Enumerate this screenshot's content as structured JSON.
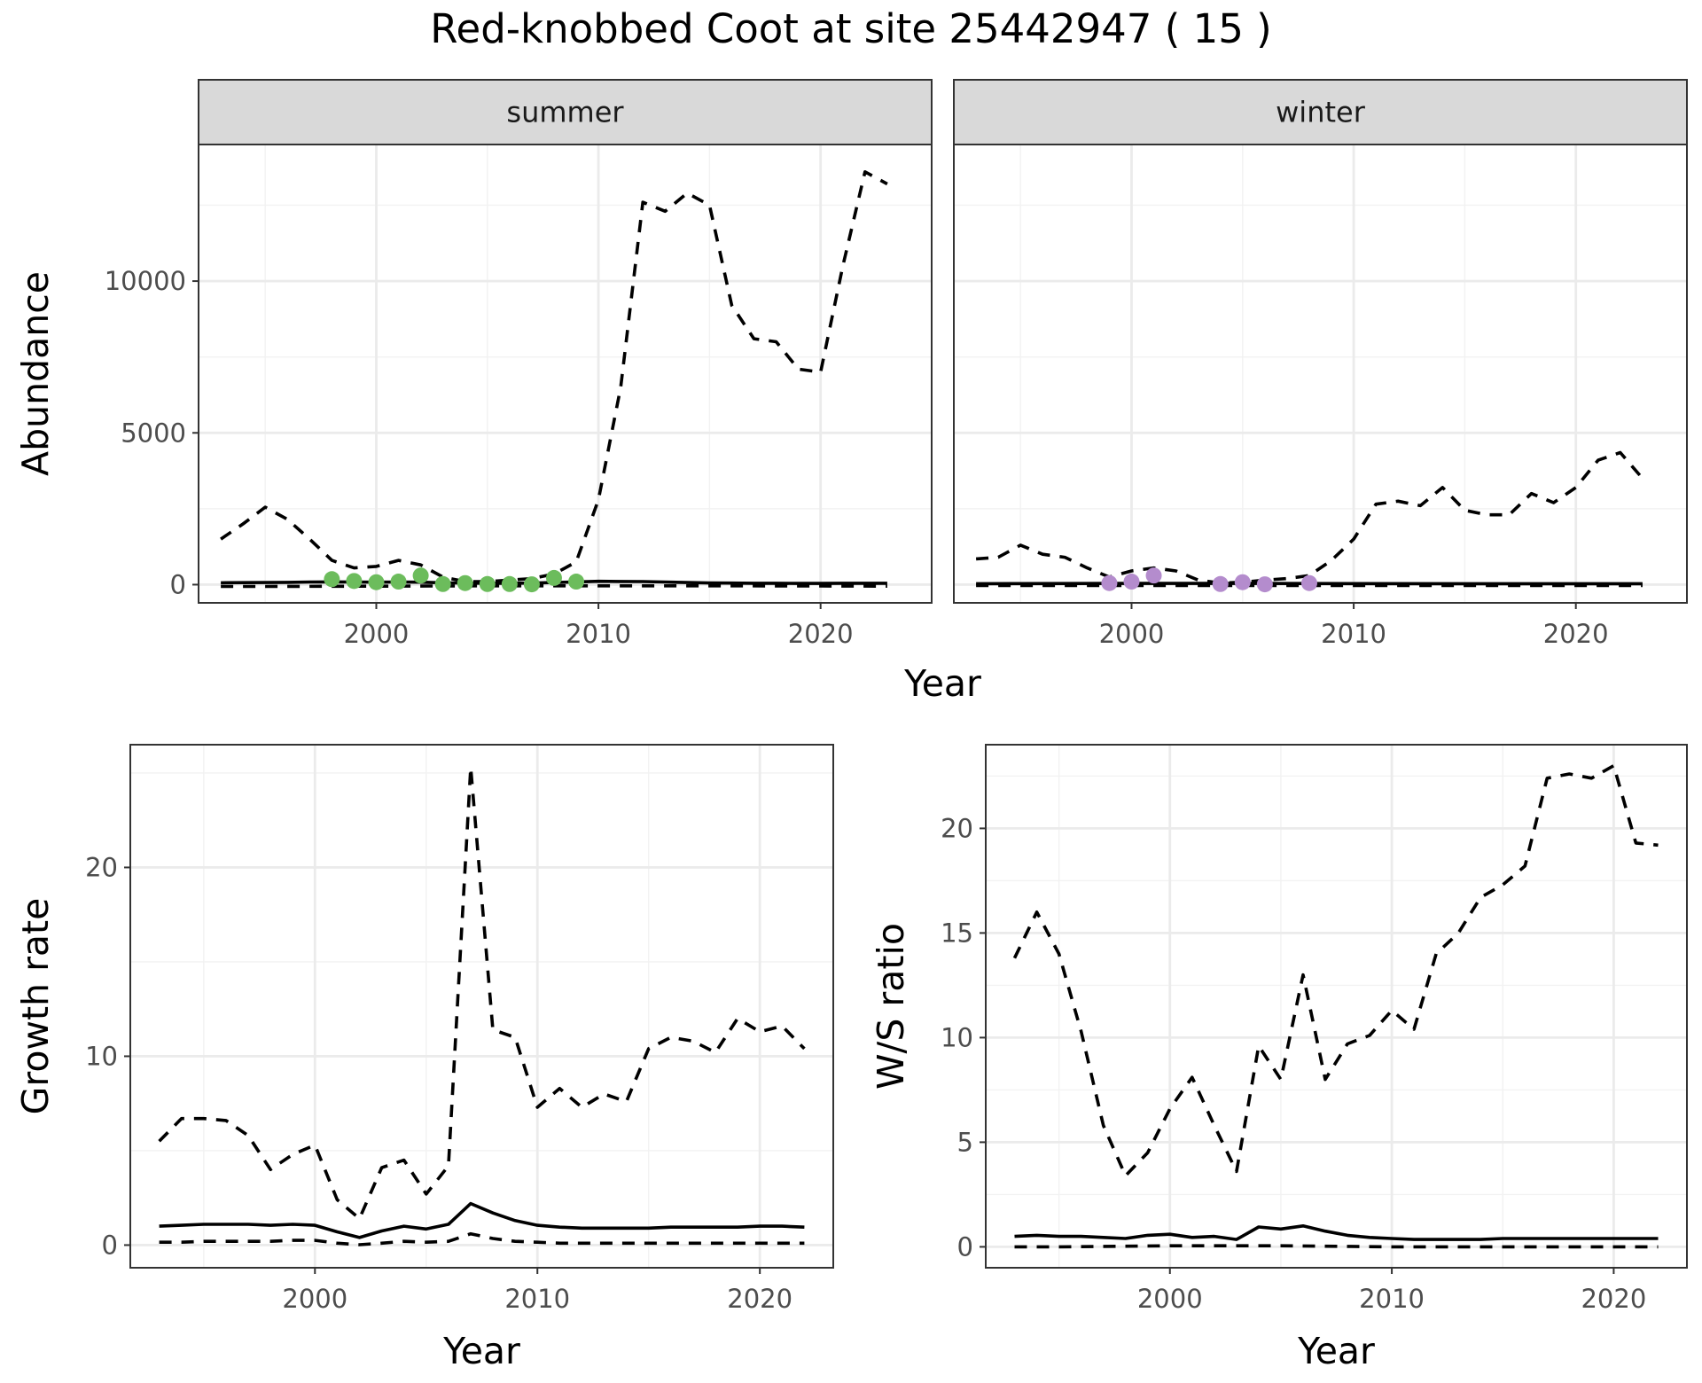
{
  "title": "Red-knobbed Coot at site 25442947 ( 15 )",
  "colors": {
    "summer_points": "#6cbc5c",
    "winter_points": "#b48ccd"
  },
  "chart_data": [
    {
      "type": "line",
      "facet": "summer",
      "xlabel": "Year",
      "ylabel": "Abundance",
      "xlim": [
        1992,
        2025
      ],
      "ylim": [
        -600,
        14500
      ],
      "xticks": [
        2000,
        2010,
        2020
      ],
      "yticks": [
        0,
        5000,
        10000
      ],
      "series": [
        {
          "style": "solid",
          "x": [
            1993,
            1994,
            1995,
            1996,
            1997,
            1998,
            1999,
            2000,
            2001,
            2002,
            2003,
            2004,
            2005,
            2006,
            2007,
            2008,
            2009,
            2010,
            2011,
            2012,
            2013,
            2014,
            2015,
            2016,
            2017,
            2018,
            2019,
            2020,
            2021,
            2022,
            2023
          ],
          "y": [
            60,
            65,
            70,
            75,
            85,
            90,
            85,
            80,
            85,
            80,
            60,
            50,
            45,
            45,
            50,
            70,
            90,
            110,
            105,
            100,
            85,
            70,
            55,
            50,
            45,
            45,
            40,
            40,
            45,
            45,
            45
          ]
        },
        {
          "style": "dashed",
          "x": [
            1993,
            1994,
            1995,
            1996,
            1997,
            1998,
            1999,
            2000,
            2001,
            2002,
            2003,
            2004,
            2005,
            2006,
            2007,
            2008,
            2009,
            2010,
            2011,
            2012,
            2013,
            2014,
            2015,
            2016,
            2017,
            2018,
            2019,
            2020,
            2021,
            2022,
            2023
          ],
          "y": [
            1500,
            2000,
            2550,
            2150,
            1500,
            800,
            550,
            600,
            800,
            650,
            250,
            100,
            100,
            150,
            200,
            350,
            750,
            2800,
            6500,
            12600,
            12300,
            12900,
            12500,
            9200,
            8100,
            8000,
            7100,
            7000,
            10500,
            13600,
            13200
          ]
        },
        {
          "style": "dashed",
          "x": [
            1993,
            1995,
            2000,
            2005,
            2010,
            2015,
            2020,
            2023
          ],
          "y": [
            -60,
            -60,
            -50,
            -40,
            -40,
            -40,
            -45,
            -50
          ]
        }
      ],
      "points": {
        "x": [
          1998,
          1999,
          2000,
          2001,
          2002,
          2003,
          2004,
          2005,
          2006,
          2007,
          2008,
          2009
        ],
        "y": [
          180,
          120,
          80,
          100,
          300,
          20,
          50,
          20,
          20,
          10,
          220,
          100
        ]
      }
    },
    {
      "type": "line",
      "facet": "winter",
      "xlabel": "Year",
      "ylabel": "",
      "xlim": [
        1992,
        2025
      ],
      "ylim": [
        -600,
        14500
      ],
      "xticks": [
        2000,
        2010,
        2020
      ],
      "yticks": [],
      "series": [
        {
          "style": "solid",
          "x": [
            1993,
            1995,
            2000,
            2005,
            2010,
            2015,
            2020,
            2023
          ],
          "y": [
            30,
            35,
            40,
            40,
            35,
            30,
            30,
            30
          ]
        },
        {
          "style": "dashed",
          "x": [
            1993,
            1994,
            1995,
            1996,
            1997,
            1998,
            1999,
            2000,
            2001,
            2002,
            2003,
            2004,
            2005,
            2006,
            2007,
            2008,
            2009,
            2010,
            2011,
            2012,
            2013,
            2014,
            2015,
            2016,
            2017,
            2018,
            2019,
            2020,
            2021,
            2022,
            2023
          ],
          "y": [
            850,
            900,
            1300,
            1000,
            900,
            550,
            250,
            450,
            550,
            450,
            150,
            50,
            80,
            150,
            200,
            300,
            800,
            1500,
            2650,
            2750,
            2600,
            3200,
            2450,
            2300,
            2300,
            3000,
            2700,
            3200,
            4100,
            4350,
            3500
          ]
        },
        {
          "style": "dashed",
          "x": [
            1993,
            2000,
            2010,
            2020,
            2023
          ],
          "y": [
            -30,
            -30,
            -30,
            -30,
            -30
          ]
        }
      ],
      "points": {
        "x": [
          1999,
          2000,
          2001,
          2004,
          2005,
          2006,
          2008
        ],
        "y": [
          50,
          100,
          300,
          20,
          80,
          10,
          50
        ]
      }
    },
    {
      "type": "line",
      "xlabel": "Year",
      "ylabel": "Growth rate",
      "xlim": [
        1991.7,
        2023.3
      ],
      "ylim": [
        -1.2,
        26.5
      ],
      "xticks": [
        2000,
        2010,
        2020
      ],
      "yticks": [
        0,
        10,
        20
      ],
      "series": [
        {
          "style": "solid",
          "x": [
            1993,
            1994,
            1995,
            1996,
            1997,
            1998,
            1999,
            2000,
            2001,
            2002,
            2003,
            2004,
            2005,
            2006,
            2007,
            2008,
            2009,
            2010,
            2011,
            2012,
            2013,
            2014,
            2015,
            2016,
            2017,
            2018,
            2019,
            2020,
            2021,
            2022
          ],
          "y": [
            1.0,
            1.05,
            1.1,
            1.1,
            1.1,
            1.05,
            1.1,
            1.05,
            0.7,
            0.4,
            0.75,
            1.0,
            0.85,
            1.1,
            2.2,
            1.7,
            1.3,
            1.05,
            0.95,
            0.9,
            0.9,
            0.9,
            0.9,
            0.95,
            0.95,
            0.95,
            0.95,
            1.0,
            1.0,
            0.95
          ]
        },
        {
          "style": "dashed",
          "x": [
            1993,
            1994,
            1995,
            1996,
            1997,
            1998,
            1999,
            2000,
            2001,
            2002,
            2003,
            2004,
            2005,
            2006,
            2007,
            2008,
            2009,
            2010,
            2011,
            2012,
            2013,
            2014,
            2015,
            2016,
            2017,
            2018,
            2019,
            2020,
            2021,
            2022
          ],
          "y": [
            5.5,
            6.7,
            6.7,
            6.6,
            5.8,
            4.0,
            4.8,
            5.3,
            2.4,
            1.4,
            4.1,
            4.5,
            2.7,
            4.2,
            25.3,
            11.4,
            11.0,
            7.3,
            8.3,
            7.3,
            8.0,
            7.6,
            10.4,
            11.0,
            10.8,
            10.2,
            12.0,
            11.3,
            11.6,
            10.4
          ]
        },
        {
          "style": "dashed",
          "x": [
            1993,
            1994,
            1995,
            1996,
            1997,
            1998,
            1999,
            2000,
            2001,
            2002,
            2003,
            2004,
            2005,
            2006,
            2007,
            2008,
            2009,
            2010,
            2011,
            2012,
            2013,
            2014,
            2015,
            2016,
            2017,
            2018,
            2019,
            2020,
            2021,
            2022
          ],
          "y": [
            0.15,
            0.15,
            0.2,
            0.2,
            0.2,
            0.2,
            0.25,
            0.25,
            0.1,
            0.02,
            0.1,
            0.2,
            0.15,
            0.2,
            0.6,
            0.35,
            0.2,
            0.15,
            0.1,
            0.1,
            0.1,
            0.1,
            0.1,
            0.1,
            0.1,
            0.1,
            0.1,
            0.1,
            0.1,
            0.1
          ]
        }
      ]
    },
    {
      "type": "line",
      "xlabel": "Year",
      "ylabel": "W/S ratio",
      "xlim": [
        1991.7,
        2023.3
      ],
      "ylim": [
        -1.0,
        24.0
      ],
      "xticks": [
        2000,
        2010,
        2020
      ],
      "yticks": [
        0,
        5,
        10,
        15,
        20
      ],
      "series": [
        {
          "style": "solid",
          "x": [
            1993,
            1994,
            1995,
            1996,
            1997,
            1998,
            1999,
            2000,
            2001,
            2002,
            2003,
            2004,
            2005,
            2006,
            2007,
            2008,
            2009,
            2010,
            2011,
            2012,
            2013,
            2014,
            2015,
            2016,
            2017,
            2018,
            2019,
            2020,
            2021,
            2022
          ],
          "y": [
            0.5,
            0.55,
            0.5,
            0.5,
            0.45,
            0.4,
            0.55,
            0.6,
            0.45,
            0.5,
            0.35,
            0.95,
            0.85,
            1.0,
            0.75,
            0.55,
            0.45,
            0.4,
            0.35,
            0.35,
            0.35,
            0.35,
            0.4,
            0.4,
            0.4,
            0.4,
            0.4,
            0.4,
            0.4,
            0.4
          ]
        },
        {
          "style": "dashed",
          "x": [
            1993,
            1994,
            1995,
            1996,
            1997,
            1998,
            1999,
            2000,
            2001,
            2002,
            2003,
            2004,
            2005,
            2006,
            2007,
            2008,
            2009,
            2010,
            2011,
            2012,
            2013,
            2014,
            2015,
            2016,
            2017,
            2018,
            2019,
            2020,
            2021,
            2022
          ],
          "y": [
            13.8,
            16.0,
            14.0,
            10.3,
            5.8,
            3.4,
            4.5,
            6.6,
            8.1,
            5.8,
            3.6,
            9.6,
            8.0,
            13.0,
            8.0,
            9.7,
            10.1,
            11.3,
            10.4,
            14.0,
            15.0,
            16.7,
            17.3,
            18.2,
            22.4,
            22.6,
            22.4,
            23.0,
            19.3,
            19.2
          ]
        },
        {
          "style": "dashed",
          "x": [
            1993,
            1995,
            2000,
            2005,
            2010,
            2015,
            2020,
            2022
          ],
          "y": [
            0.0,
            0.0,
            0.05,
            0.05,
            0.0,
            0.0,
            0.0,
            0.0
          ]
        }
      ]
    }
  ]
}
